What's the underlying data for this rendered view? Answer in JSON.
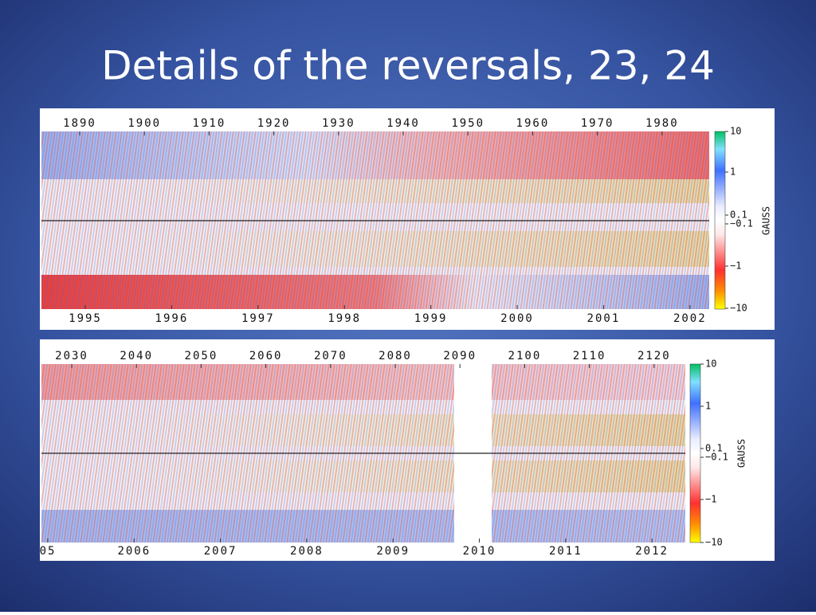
{
  "title": "Details of the reversals, 23, 24",
  "panels": [
    {
      "top_axis": [
        "1890",
        "1900",
        "1910",
        "1920",
        "1930",
        "1940",
        "1950",
        "1960",
        "1970",
        "1980"
      ],
      "bottom_axis": [
        "1995",
        "1996",
        "1997",
        "1998",
        "1999",
        "2000",
        "2001",
        "2002"
      ],
      "colorbar": {
        "labels": [
          "10",
          "1",
          "0.1",
          "−0.1",
          "−1",
          "−10"
        ],
        "title": "GAUSS"
      }
    },
    {
      "top_axis": [
        "2030",
        "2040",
        "2050",
        "2060",
        "2070",
        "2080",
        "2090",
        "2100",
        "2110",
        "2120"
      ],
      "bottom_axis": [
        "05",
        "2006",
        "2007",
        "2008",
        "2009",
        "2010",
        "2011",
        "2012"
      ],
      "colorbar": {
        "labels": [
          "10",
          "1",
          "0.1",
          "−0.1",
          "−1",
          "−10"
        ],
        "title": "GAUSS"
      }
    }
  ]
}
